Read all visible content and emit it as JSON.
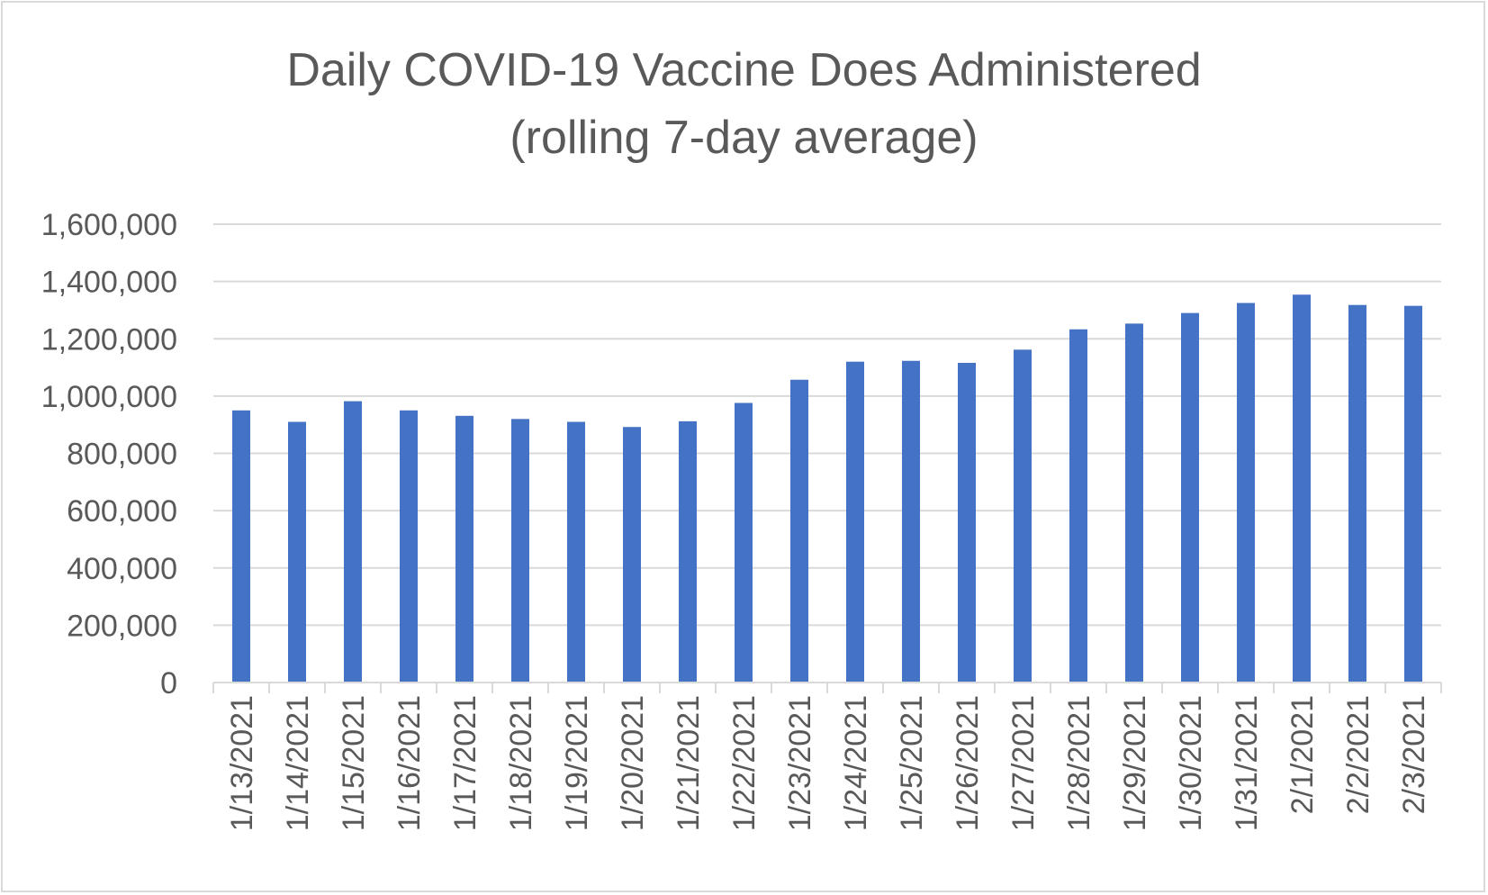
{
  "chart_data": {
    "type": "bar",
    "title_line1": "Daily COVID-19 Vaccine Does Administered",
    "title_line2": "(rolling 7-day average)",
    "xlabel": "",
    "ylabel": "",
    "categories": [
      "1/13/2021",
      "1/14/2021",
      "1/15/2021",
      "1/16/2021",
      "1/17/2021",
      "1/18/2021",
      "1/19/2021",
      "1/20/2021",
      "1/21/2021",
      "1/22/2021",
      "1/23/2021",
      "1/24/2021",
      "1/25/2021",
      "1/26/2021",
      "1/27/2021",
      "1/28/2021",
      "1/29/2021",
      "1/30/2021",
      "1/31/2021",
      "2/1/2021",
      "2/2/2021",
      "2/3/2021"
    ],
    "values": [
      950000,
      910000,
      982000,
      950000,
      931000,
      920000,
      910000,
      892000,
      912000,
      976000,
      1057000,
      1120000,
      1123000,
      1116000,
      1162000,
      1233000,
      1253000,
      1290000,
      1325000,
      1354000,
      1318000,
      1315000
    ],
    "ylim": [
      0,
      1600000
    ],
    "yticks": [
      0,
      200000,
      400000,
      600000,
      800000,
      1000000,
      1200000,
      1400000,
      1600000
    ],
    "ytick_labels": [
      "0",
      "200,000",
      "400,000",
      "600,000",
      "800,000",
      "1,000,000",
      "1,200,000",
      "1,400,000",
      "1,600,000"
    ],
    "grid": true,
    "legend": "none",
    "bar_color": "#4472c4",
    "grid_color": "#d9d9d9",
    "text_color": "#595959"
  }
}
